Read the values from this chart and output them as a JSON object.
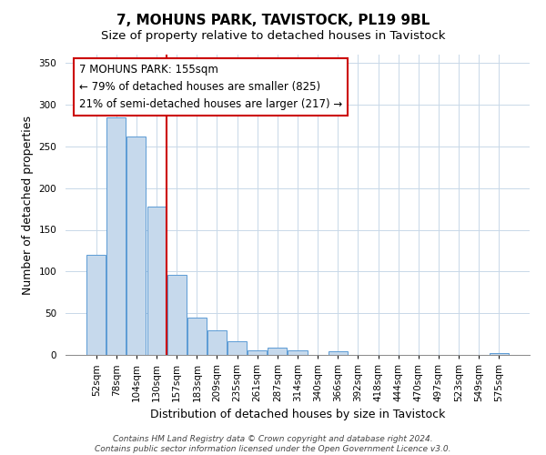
{
  "title": "7, MOHUNS PARK, TAVISTOCK, PL19 9BL",
  "subtitle": "Size of property relative to detached houses in Tavistock",
  "xlabel": "Distribution of detached houses by size in Tavistock",
  "ylabel": "Number of detached properties",
  "bar_labels": [
    "52sqm",
    "78sqm",
    "104sqm",
    "130sqm",
    "157sqm",
    "183sqm",
    "209sqm",
    "235sqm",
    "261sqm",
    "287sqm",
    "314sqm",
    "340sqm",
    "366sqm",
    "392sqm",
    "418sqm",
    "444sqm",
    "470sqm",
    "497sqm",
    "523sqm",
    "549sqm",
    "575sqm"
  ],
  "bar_values": [
    120,
    285,
    262,
    178,
    96,
    45,
    29,
    16,
    5,
    9,
    5,
    0,
    4,
    0,
    0,
    0,
    0,
    0,
    0,
    0,
    2
  ],
  "bar_color": "#c6d9ec",
  "bar_edge_color": "#5b9bd5",
  "vline_color": "#cc0000",
  "vline_x_index": 4,
  "annotation_title": "7 MOHUNS PARK: 155sqm",
  "annotation_line1": "← 79% of detached houses are smaller (825)",
  "annotation_line2": "21% of semi-detached houses are larger (217) →",
  "annotation_box_color": "#ffffff",
  "annotation_box_edge": "#cc0000",
  "ylim": [
    0,
    360
  ],
  "yticks": [
    0,
    50,
    100,
    150,
    200,
    250,
    300,
    350
  ],
  "footer1": "Contains HM Land Registry data © Crown copyright and database right 2024.",
  "footer2": "Contains public sector information licensed under the Open Government Licence v3.0.",
  "title_fontsize": 11,
  "subtitle_fontsize": 9.5,
  "xlabel_fontsize": 9,
  "ylabel_fontsize": 9,
  "tick_fontsize": 7.5,
  "annotation_fontsize": 8.5,
  "footer_fontsize": 6.5
}
